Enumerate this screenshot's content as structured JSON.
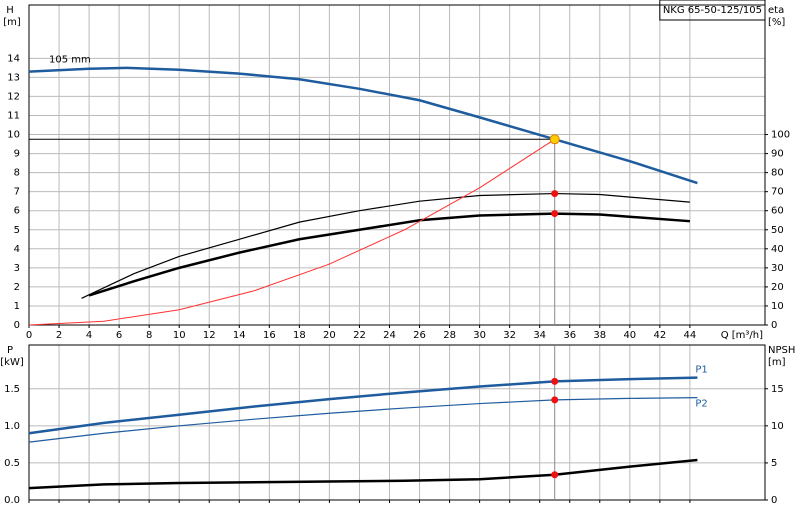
{
  "chart_data": [
    {
      "type": "line",
      "title": "NKG 65-50-125/105",
      "annotation": "105 mm",
      "y_label": "H",
      "y_unit": "[m]",
      "y2_label": "eta",
      "y2_unit": "[%]",
      "x_label": "Q [m³/h]",
      "xlim": [
        0,
        49
      ],
      "xticks": [
        0,
        2,
        4,
        6,
        8,
        10,
        12,
        14,
        16,
        18,
        20,
        22,
        24,
        26,
        28,
        30,
        32,
        34,
        36,
        38,
        40,
        42,
        44
      ],
      "ylim": [
        0,
        16.8
      ],
      "yticks": [
        0,
        1,
        2,
        3,
        4,
        5,
        6,
        7,
        8,
        9,
        10,
        11,
        12,
        13,
        14
      ],
      "y2lim": [
        0,
        168
      ],
      "y2ticks": [
        0,
        10,
        20,
        30,
        40,
        50,
        60,
        70,
        80,
        90,
        100
      ],
      "grid": true,
      "duty_point": {
        "x": 35,
        "y": 9.75
      },
      "series": [
        {
          "color": "#1f5c9e",
          "line_width": 2.5,
          "x": [
            0,
            4,
            6.5,
            10,
            14,
            18,
            22,
            26,
            30,
            35,
            40,
            44.5
          ],
          "values": [
            13.3,
            13.45,
            13.5,
            13.4,
            13.2,
            12.9,
            12.4,
            11.8,
            10.9,
            9.75,
            8.6,
            7.45
          ]
        },
        {
          "color": "#000000",
          "line_width": 1.2,
          "axis": "y2",
          "x": [
            3.5,
            7,
            10,
            14,
            18,
            22,
            26,
            30,
            35,
            38,
            44
          ],
          "values": [
            14,
            27,
            36,
            45,
            54,
            60,
            65,
            68,
            69,
            68.5,
            64.5
          ]
        },
        {
          "color": "#000000",
          "line_width": 2.5,
          "axis": "y2",
          "x": [
            4,
            7,
            10,
            14,
            18,
            22,
            26,
            30,
            35,
            38,
            44
          ],
          "values": [
            15.5,
            23,
            30,
            38,
            45,
            50,
            55,
            57.5,
            58.5,
            58,
            54.5
          ]
        },
        {
          "color": "#ff3030",
          "line_width": 1,
          "x": [
            0,
            5,
            10,
            15,
            20,
            25,
            30,
            35
          ],
          "values": [
            0,
            0.2,
            0.8,
            1.8,
            3.2,
            5.0,
            7.2,
            9.75
          ]
        }
      ]
    },
    {
      "type": "line",
      "y_label": "P",
      "y_unit": "[kW]",
      "y2_label": "NPSH",
      "y2_unit": "[m]",
      "xlim": [
        0,
        49
      ],
      "xticks": [
        0,
        2,
        4,
        6,
        8,
        10,
        12,
        14,
        16,
        18,
        20,
        22,
        24,
        26,
        28,
        30,
        32,
        34,
        36,
        38,
        40,
        42,
        44
      ],
      "ylim": [
        0,
        2.09
      ],
      "yticks": [
        {
          "value": 0,
          "label": "0.0"
        },
        {
          "value": 0.5,
          "label": "0.5"
        },
        {
          "value": 1,
          "label": "1.0"
        },
        {
          "value": 1.5,
          "label": "1.5"
        }
      ],
      "y2lim": [
        0,
        20.9
      ],
      "y2ticks": [
        0,
        5,
        10,
        15
      ],
      "grid": true,
      "duty_point": {
        "x": 35
      },
      "series": [
        {
          "name": "P1",
          "color": "#1f5c9e",
          "line_width": 2.5,
          "x": [
            0,
            5,
            10,
            15,
            20,
            25,
            30,
            35,
            40,
            44.5
          ],
          "values": [
            0.9,
            1.04,
            1.15,
            1.26,
            1.36,
            1.45,
            1.53,
            1.6,
            1.63,
            1.65
          ]
        },
        {
          "name": "P2",
          "color": "#1f5c9e",
          "line_width": 1.2,
          "x": [
            0,
            5,
            10,
            15,
            20,
            25,
            30,
            35,
            40,
            44.5
          ],
          "values": [
            0.78,
            0.9,
            1.0,
            1.09,
            1.17,
            1.24,
            1.3,
            1.35,
            1.37,
            1.38
          ]
        },
        {
          "color": "#000000",
          "line_width": 2.5,
          "axis": "y2",
          "x": [
            0,
            5,
            10,
            20,
            25,
            30,
            35,
            40,
            44.5
          ],
          "values": [
            1.6,
            2.1,
            2.3,
            2.5,
            2.6,
            2.8,
            3.4,
            4.5,
            5.4
          ]
        }
      ]
    }
  ]
}
